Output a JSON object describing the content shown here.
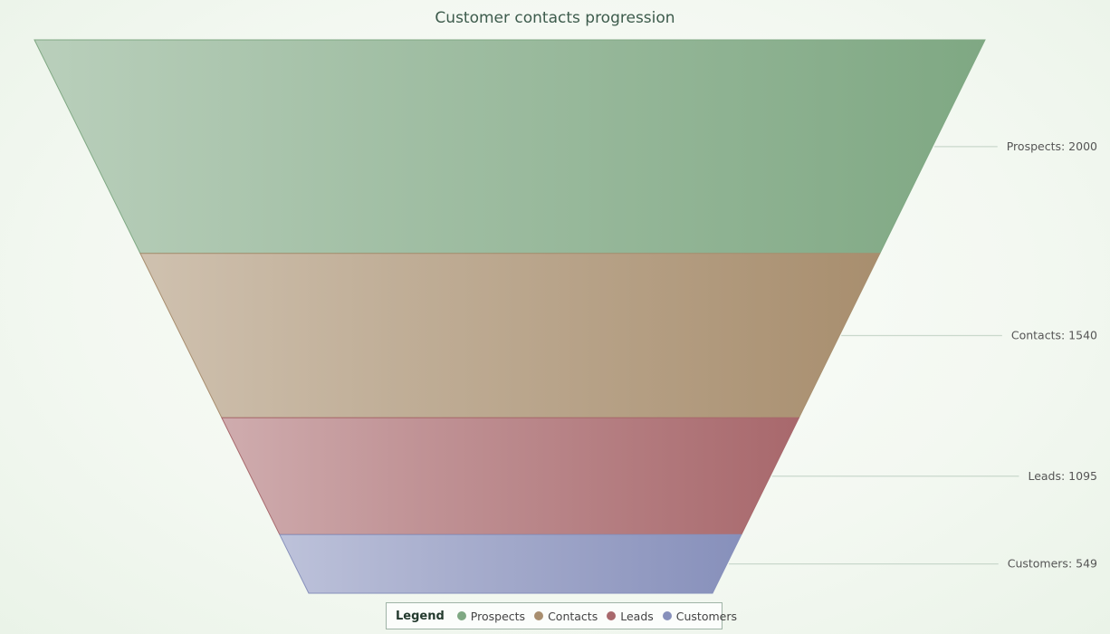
{
  "chart_data": {
    "type": "funnel",
    "title": "Customer contacts progression",
    "legend_title": "Legend",
    "legend_position": "bottom",
    "categories": [
      "Prospects",
      "Contacts",
      "Leads",
      "Customers"
    ],
    "values": [
      2000,
      1540,
      1095,
      549
    ],
    "labels": [
      "Prospects: 2000",
      "Contacts: 1540",
      "Leads: 1095",
      "Customers: 549"
    ],
    "colors": {
      "Prospects": "#7fa883",
      "Contacts": "#a88e6e",
      "Leads": "#a8686c",
      "Customers": "#8790bb"
    }
  }
}
